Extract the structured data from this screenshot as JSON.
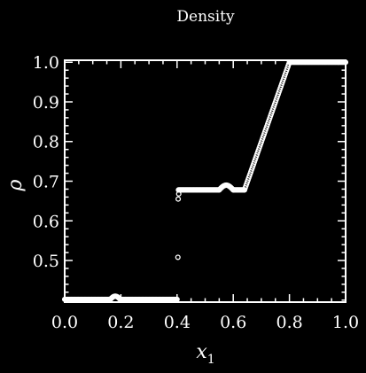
{
  "chart_data": {
    "type": "scatter",
    "title": "Density",
    "xlabel": "x",
    "xlabel_subscript": "1",
    "ylabel": "ρ",
    "xlim": [
      0.0,
      1.0
    ],
    "ylim": [
      0.395,
      1.005
    ],
    "x_ticks": [
      0.0,
      0.2,
      0.4,
      0.6,
      0.8,
      1.0
    ],
    "x_tick_labels": [
      "0.0",
      "0.2",
      "0.4",
      "0.6",
      "0.8",
      "1.0"
    ],
    "y_ticks": [
      0.5,
      0.6,
      0.7,
      0.8,
      0.9,
      1.0
    ],
    "y_tick_labels": [
      "0.5",
      "0.6",
      "0.7",
      "0.8",
      "0.9",
      "1.0"
    ],
    "series": [
      {
        "name": "density",
        "marker": "open-circle",
        "color": "#ffffff",
        "segments": [
          {
            "x_start": 0.0,
            "x_end": 0.4,
            "y": 0.402
          },
          {
            "x_start": 0.405,
            "x_end": 0.55,
            "y": 0.678
          },
          {
            "x_start": 0.6,
            "x_end": 0.64,
            "y": 0.678
          },
          {
            "x_start": 0.64,
            "x_end": 0.8,
            "y_start": 0.678,
            "y_end": 1.0
          },
          {
            "x_start": 0.8,
            "x_end": 1.0,
            "y": 1.0
          }
        ],
        "bumps": [
          {
            "x_center": 0.18,
            "width": 0.035,
            "height": 0.008,
            "base": 0.402
          },
          {
            "x_center": 0.575,
            "width": 0.05,
            "height": 0.012,
            "base": 0.678
          }
        ],
        "outliers": [
          {
            "x": 0.403,
            "y": 0.508
          },
          {
            "x": 0.404,
            "y": 0.655
          },
          {
            "x": 0.406,
            "y": 0.668
          }
        ]
      }
    ]
  }
}
